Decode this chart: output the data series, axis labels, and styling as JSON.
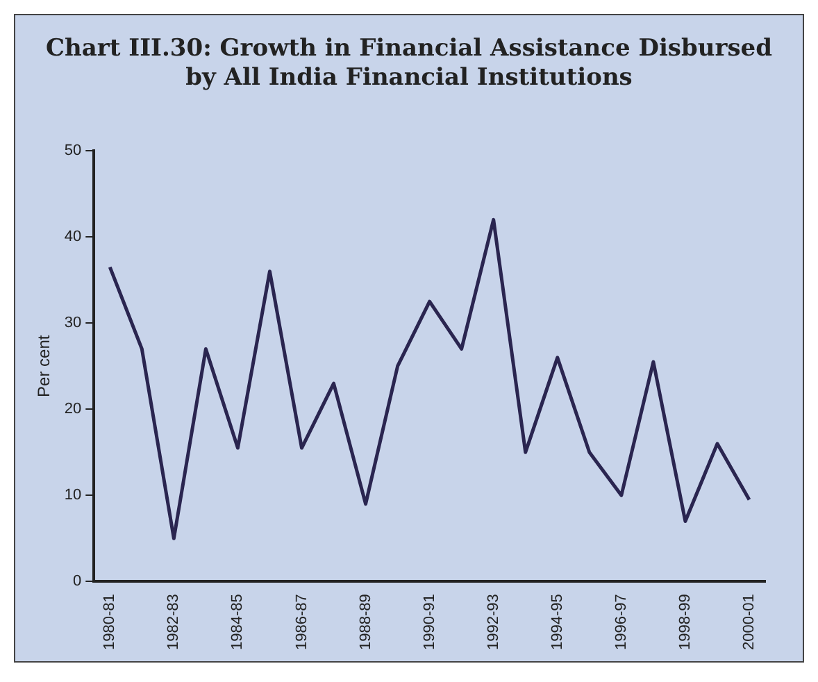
{
  "chart_data": {
    "type": "line",
    "title": "Chart III.30: Growth in Financial Assistance Disbursed by All India Financial Institutions",
    "ylabel": "Per cent",
    "categories": [
      "1980-81",
      null,
      "1982-83",
      null,
      "1984-85",
      null,
      "1986-87",
      null,
      "1988-89",
      null,
      "1990-91",
      null,
      "1992-93",
      null,
      "1994-95",
      null,
      "1996-97",
      null,
      "1998-99",
      null,
      "2000-01"
    ],
    "values": [
      36.5,
      27,
      5,
      27,
      15.5,
      36,
      15.5,
      23,
      9,
      25,
      32.5,
      27,
      42,
      15,
      26,
      15,
      10,
      25.5,
      7,
      16,
      9.5
    ],
    "color": "#2a2550",
    "ylim": [
      0,
      50
    ],
    "yticks": [
      0,
      10,
      20,
      30,
      40,
      50
    ],
    "grid": false,
    "legend": false,
    "marker": "none",
    "line_style": "solid"
  }
}
